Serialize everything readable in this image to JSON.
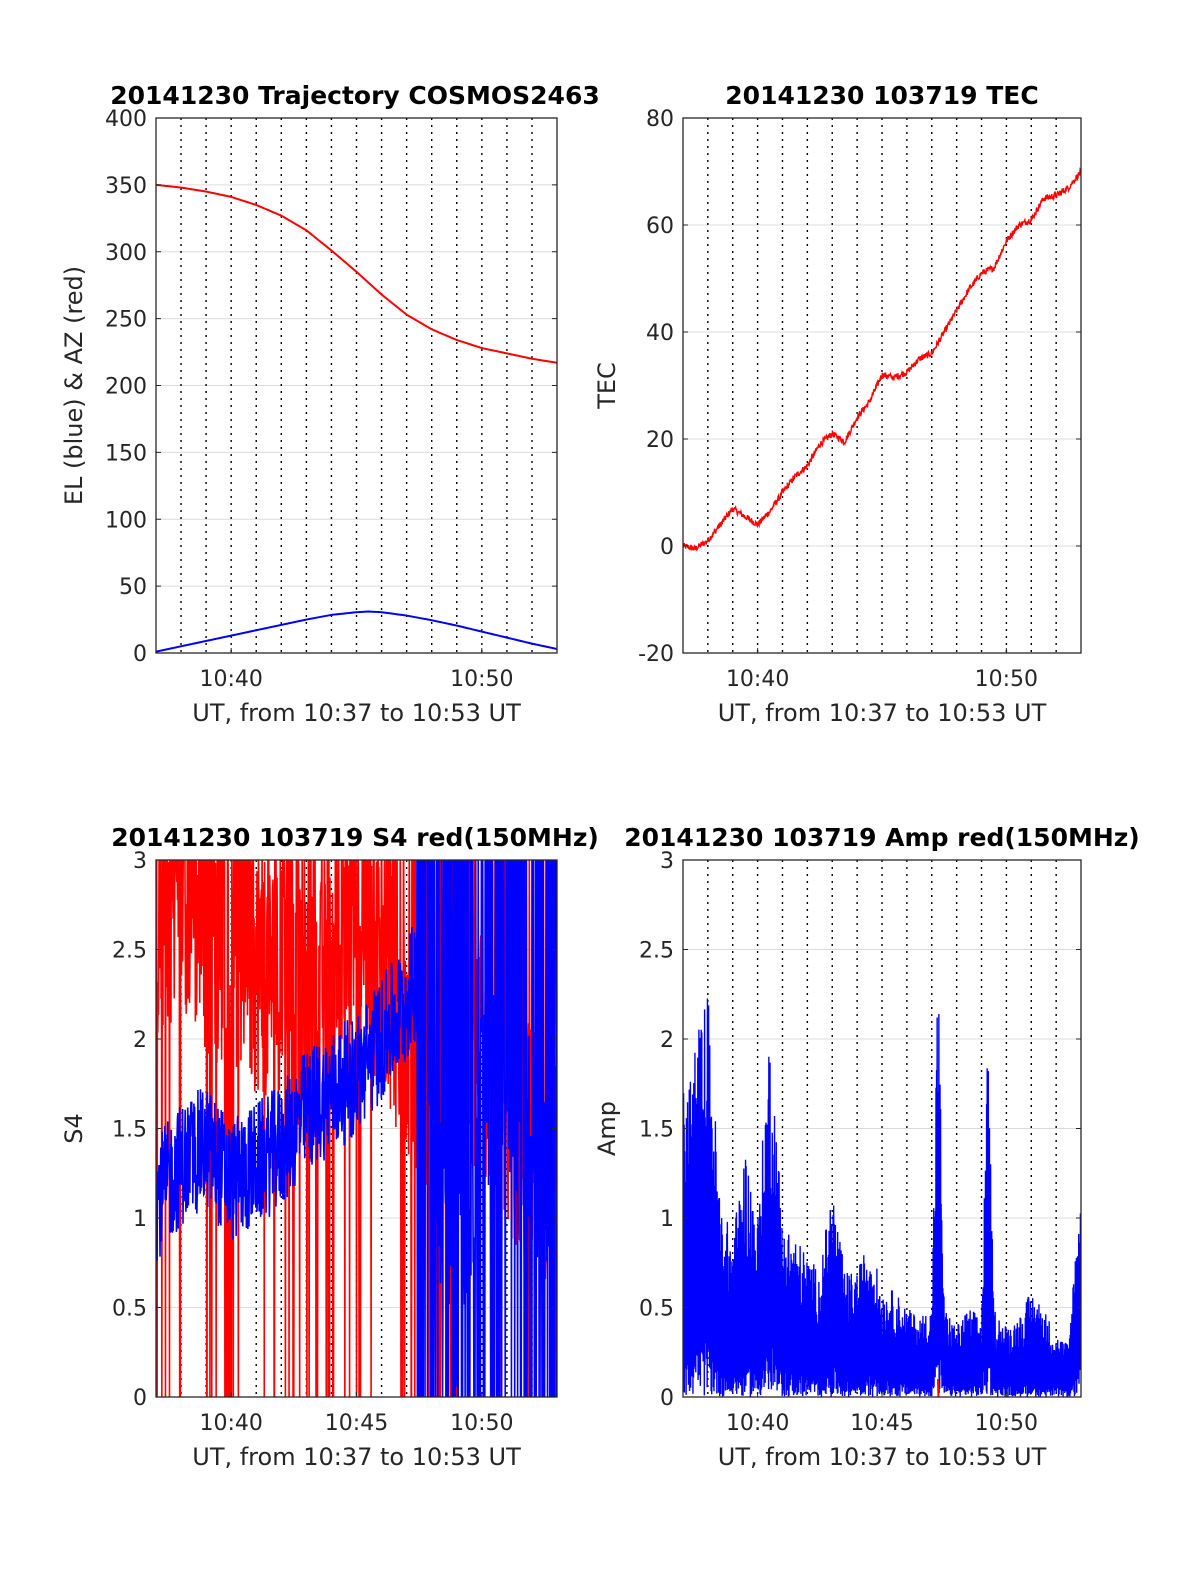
{
  "colors": {
    "el": "#0000ff",
    "az": "#ff0000",
    "tec": "#ff0000",
    "s4_red": "#ff0000",
    "s4_blue": "#0000ff",
    "amp_blue": "#0000ff",
    "amp_red": "#ff0000"
  },
  "chart_data": [
    {
      "type": "line",
      "title": "20141230 Trajectory COSMOS2463",
      "xlabel": "UT, from 10:37 to 10:53 UT",
      "ylabel": "EL (blue) & AZ (red)",
      "xlim": [
        10.6167,
        10.8833
      ],
      "ylim": [
        0,
        400
      ],
      "yticks": [
        0,
        50,
        100,
        150,
        200,
        250,
        300,
        350,
        400
      ],
      "yticklabels": [
        "0",
        "50",
        "100",
        "150",
        "200",
        "250",
        "300",
        "350",
        "400"
      ],
      "xticks": [
        10.6667,
        10.8333
      ],
      "xticklabels": [
        "10:40",
        "10:50"
      ],
      "grid": true,
      "series": [
        {
          "key": "el",
          "x": [
            10.6167,
            10.6333,
            10.65,
            10.6667,
            10.6833,
            10.7,
            10.7167,
            10.7333,
            10.75,
            10.7583,
            10.7667,
            10.7833,
            10.8,
            10.8167,
            10.8333,
            10.85,
            10.8667,
            10.8833
          ],
          "y": [
            1,
            5,
            9,
            13,
            17,
            21,
            25,
            28.5,
            30.5,
            31,
            30.5,
            28,
            24.5,
            20.5,
            16,
            11.5,
            7,
            3
          ]
        },
        {
          "key": "az",
          "x": [
            10.6167,
            10.6333,
            10.65,
            10.6667,
            10.6833,
            10.7,
            10.7167,
            10.7333,
            10.75,
            10.7667,
            10.7833,
            10.8,
            10.8167,
            10.8333,
            10.85,
            10.8667,
            10.8833
          ],
          "y": [
            350,
            348,
            345,
            341,
            335,
            327,
            316,
            301,
            285,
            268,
            253,
            242,
            234,
            228,
            224,
            220,
            217
          ]
        }
      ]
    },
    {
      "type": "line",
      "title": "20141230 103719 TEC",
      "xlabel": "UT, from 10:37 to 10:53 UT",
      "ylabel": "TEC",
      "xlim": [
        10.6167,
        10.8833
      ],
      "ylim": [
        -20,
        80
      ],
      "yticks": [
        -20,
        0,
        20,
        40,
        60,
        80
      ],
      "yticklabels": [
        "-20",
        "0",
        "20",
        "40",
        "60",
        "80"
      ],
      "xticks": [
        10.6667,
        10.8333
      ],
      "xticklabels": [
        "10:40",
        "10:50"
      ],
      "grid": true,
      "series": [
        {
          "key": "tec",
          "x": [
            10.6167,
            10.625,
            10.6333,
            10.6417,
            10.65,
            10.6583,
            10.6667,
            10.675,
            10.6833,
            10.6917,
            10.7,
            10.7083,
            10.7167,
            10.725,
            10.7333,
            10.7417,
            10.75,
            10.7583,
            10.7667,
            10.775,
            10.7833,
            10.7917,
            10.8,
            10.8083,
            10.8167,
            10.825,
            10.8333,
            10.8417,
            10.85,
            10.8583,
            10.8667,
            10.875,
            10.8833
          ],
          "y": [
            0,
            -0.5,
            1,
            4,
            7,
            5.5,
            4,
            6.5,
            10,
            13,
            15,
            19,
            21,
            19.5,
            24,
            27,
            32,
            31.5,
            32.5,
            35,
            36,
            40,
            44,
            48,
            51,
            52,
            57,
            60,
            61,
            65,
            65.5,
            67,
            70
          ]
        }
      ]
    },
    {
      "type": "line",
      "title": "20141230 103719 S4 red(150MHz)",
      "xlabel": "UT, from 10:37 to 10:53 UT",
      "ylabel": "S4",
      "xlim": [
        10.6167,
        10.8833
      ],
      "ylim": [
        0,
        3
      ],
      "yticks": [
        0,
        0.5,
        1,
        1.5,
        2,
        2.5,
        3
      ],
      "yticklabels": [
        "0",
        "0.5",
        "1",
        "1.5",
        "2",
        "2.5",
        "3"
      ],
      "xticks": [
        10.6667,
        10.75,
        10.8333
      ],
      "xticklabels": [
        "10:40",
        "10:45",
        "10:50"
      ],
      "grid": true,
      "series": [
        {
          "key": "s4_red",
          "x": [
            10.6167,
            10.6333,
            10.65,
            10.6667,
            10.6833,
            10.7,
            10.7167,
            10.7333,
            10.75,
            10.7667,
            10.7833,
            10.8,
            10.8167,
            10.8333,
            10.85,
            10.8667,
            10.8833
          ],
          "y": [
            2.6,
            2.9,
            2.6,
            2.5,
            2.4,
            2.3,
            2.1,
            2.3,
            2.6,
            2.4,
            2.0,
            1.7,
            2.2,
            1.9,
            1.6,
            1.4,
            1.2
          ]
        },
        {
          "key": "s4_blue",
          "x": [
            10.6167,
            10.6333,
            10.65,
            10.6667,
            10.6833,
            10.7,
            10.7167,
            10.7333,
            10.75,
            10.7667,
            10.7833,
            10.7917,
            10.8,
            10.8167,
            10.8333,
            10.85,
            10.8667,
            10.8833
          ],
          "y": [
            1.1,
            1.3,
            1.4,
            1.2,
            1.3,
            1.4,
            1.6,
            1.7,
            1.8,
            2.0,
            2.2,
            2.4,
            1.5,
            0.6,
            1.6,
            1.8,
            1.5,
            0.9
          ]
        }
      ]
    },
    {
      "type": "line",
      "title": "20141230 103719 Amp red(150MHz)",
      "xlabel": "UT, from 10:37 to 10:53 UT",
      "ylabel": "Amp",
      "xlim": [
        10.6167,
        10.8833
      ],
      "ylim": [
        0,
        3
      ],
      "yticks": [
        0,
        0.5,
        1,
        1.5,
        2,
        2.5,
        3
      ],
      "yticklabels": [
        "0",
        "0.5",
        "1",
        "1.5",
        "2",
        "2.5",
        "3"
      ],
      "xticks": [
        10.6667,
        10.75,
        10.8333
      ],
      "xticklabels": [
        "10:40",
        "10:45",
        "10:50"
      ],
      "grid": true,
      "series": [
        {
          "key": "amp_blue",
          "x": [
            10.6167,
            10.625,
            10.6333,
            10.6417,
            10.65,
            10.6583,
            10.6667,
            10.675,
            10.6833,
            10.6917,
            10.7,
            10.7083,
            10.7167,
            10.725,
            10.7333,
            10.7417,
            10.75,
            10.7583,
            10.7667,
            10.775,
            10.7833,
            10.7875,
            10.7917,
            10.8,
            10.8083,
            10.8167,
            10.8208,
            10.825,
            10.8333,
            10.8417,
            10.85,
            10.8583,
            10.8667,
            10.875,
            10.8833
          ],
          "y": [
            1.7,
            2.0,
            2.3,
            1.1,
            0.9,
            1.4,
            1.0,
            2.1,
            1.0,
            0.9,
            0.8,
            0.7,
            1.2,
            0.7,
            0.7,
            0.9,
            0.6,
            0.6,
            0.5,
            0.45,
            0.5,
            2.5,
            0.5,
            0.4,
            0.5,
            0.45,
            2.0,
            0.5,
            0.4,
            0.45,
            0.6,
            0.5,
            0.35,
            0.3,
            1.3
          ]
        },
        {
          "key": "amp_red",
          "x": [
            10.7875,
            10.7878
          ],
          "y": [
            0.1,
            0.0
          ]
        }
      ]
    }
  ]
}
